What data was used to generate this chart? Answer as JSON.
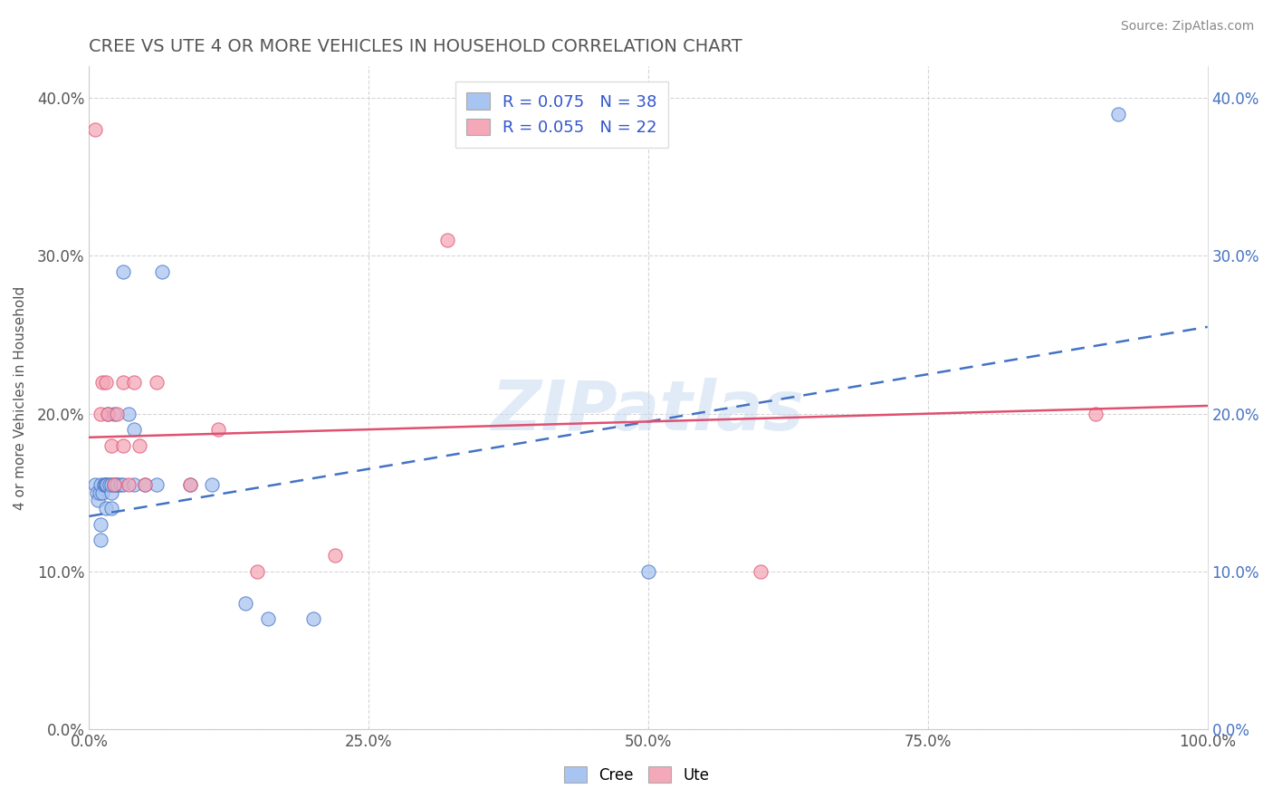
{
  "title": "CREE VS UTE 4 OR MORE VEHICLES IN HOUSEHOLD CORRELATION CHART",
  "source": "Source: ZipAtlas.com",
  "ylabel": "4 or more Vehicles in Household",
  "xlim": [
    0.0,
    1.0
  ],
  "ylim": [
    0.0,
    0.42
  ],
  "xticks": [
    0.0,
    0.25,
    0.5,
    0.75,
    1.0
  ],
  "xtick_labels": [
    "0.0%",
    "25.0%",
    "50.0%",
    "75.0%",
    "100.0%"
  ],
  "yticks": [
    0.0,
    0.1,
    0.2,
    0.3,
    0.4
  ],
  "ytick_labels": [
    "0.0%",
    "10.0%",
    "20.0%",
    "30.0%",
    "40.0%"
  ],
  "cree_R": 0.075,
  "cree_N": 38,
  "ute_R": 0.055,
  "ute_N": 22,
  "cree_color": "#a8c4f0",
  "cree_line_color": "#4472c4",
  "ute_color": "#f4a8b8",
  "ute_line_color": "#e05070",
  "background_color": "#ffffff",
  "grid_color": "#cccccc",
  "watermark": "ZIPatlas",
  "title_color": "#555555",
  "stat_color": "#3355cc",
  "cree_line_x": [
    0.0,
    1.0
  ],
  "cree_line_y": [
    0.135,
    0.255
  ],
  "ute_line_x": [
    0.0,
    1.0
  ],
  "ute_line_y": [
    0.185,
    0.205
  ],
  "cree_x": [
    0.005,
    0.007,
    0.008,
    0.009,
    0.01,
    0.01,
    0.01,
    0.012,
    0.013,
    0.014,
    0.015,
    0.015,
    0.016,
    0.017,
    0.018,
    0.02,
    0.02,
    0.02,
    0.022,
    0.022,
    0.025,
    0.025,
    0.028,
    0.03,
    0.03,
    0.035,
    0.04,
    0.04,
    0.05,
    0.06,
    0.065,
    0.09,
    0.11,
    0.14,
    0.16,
    0.2,
    0.5,
    0.92
  ],
  "cree_y": [
    0.155,
    0.15,
    0.145,
    0.15,
    0.12,
    0.13,
    0.155,
    0.15,
    0.155,
    0.155,
    0.14,
    0.155,
    0.155,
    0.2,
    0.155,
    0.14,
    0.15,
    0.155,
    0.155,
    0.2,
    0.155,
    0.155,
    0.155,
    0.155,
    0.29,
    0.2,
    0.155,
    0.19,
    0.155,
    0.155,
    0.29,
    0.155,
    0.155,
    0.08,
    0.07,
    0.07,
    0.1,
    0.39
  ],
  "ute_x": [
    0.005,
    0.01,
    0.012,
    0.015,
    0.017,
    0.02,
    0.022,
    0.025,
    0.03,
    0.03,
    0.035,
    0.04,
    0.045,
    0.05,
    0.06,
    0.09,
    0.115,
    0.15,
    0.22,
    0.32,
    0.6,
    0.9
  ],
  "ute_y": [
    0.38,
    0.2,
    0.22,
    0.22,
    0.2,
    0.18,
    0.155,
    0.2,
    0.18,
    0.22,
    0.155,
    0.22,
    0.18,
    0.155,
    0.22,
    0.155,
    0.19,
    0.1,
    0.11,
    0.31,
    0.1,
    0.2
  ]
}
